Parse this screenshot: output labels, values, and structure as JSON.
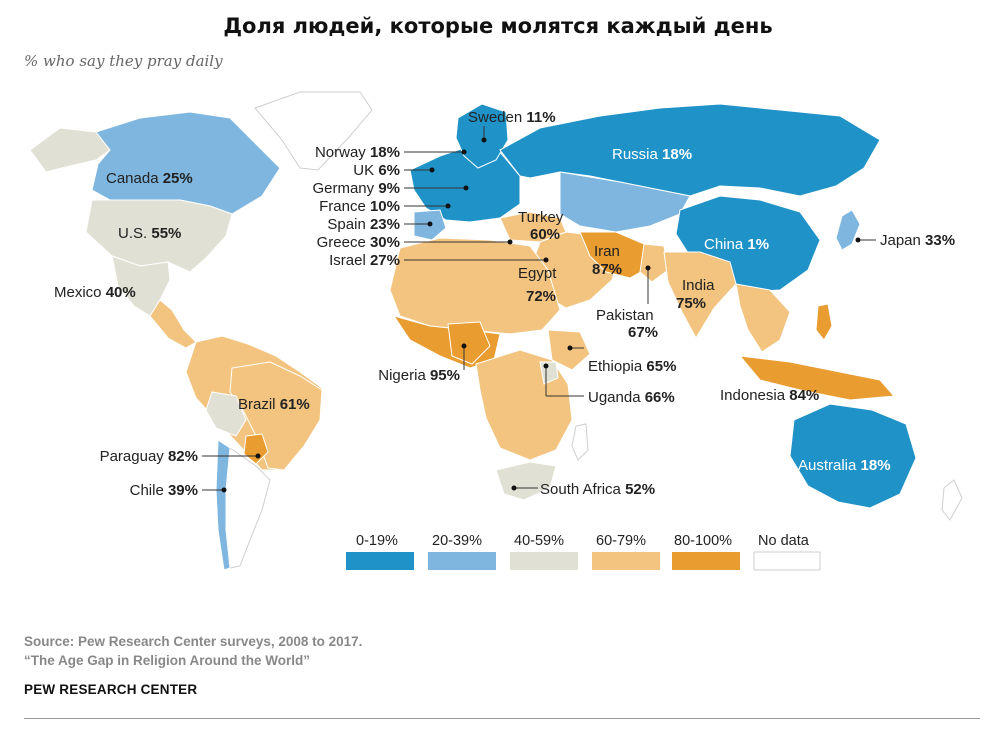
{
  "title": "Доля людей, которые молятся каждый день",
  "subtitle": "% who say they pray daily",
  "colors": {
    "c0_19": "#1f93c8",
    "c20_39": "#7fb6df",
    "c40_59": "#e1e0d4",
    "c60_79": "#f3c47f",
    "c80_100": "#e99c2f",
    "nodata": "#ffffff"
  },
  "countries": [
    {
      "name": "Sweden",
      "value": "11%",
      "band": "0-19%"
    },
    {
      "name": "Norway",
      "value": "18%",
      "band": "0-19%"
    },
    {
      "name": "UK",
      "value": "6%",
      "band": "0-19%"
    },
    {
      "name": "Germany",
      "value": "9%",
      "band": "0-19%"
    },
    {
      "name": "France",
      "value": "10%",
      "band": "0-19%"
    },
    {
      "name": "Spain",
      "value": "23%",
      "band": "20-39%"
    },
    {
      "name": "Greece",
      "value": "30%",
      "band": "20-39%"
    },
    {
      "name": "Israel",
      "value": "27%",
      "band": "20-39%"
    },
    {
      "name": "Russia",
      "value": "18%",
      "band": "0-19%"
    },
    {
      "name": "Canada",
      "value": "25%",
      "band": "20-39%"
    },
    {
      "name": "U.S.",
      "value": "55%",
      "band": "40-59%"
    },
    {
      "name": "Mexico",
      "value": "40%",
      "band": "40-59%"
    },
    {
      "name": "Turkey",
      "value": "60%",
      "band": "60-79%"
    },
    {
      "name": "Iran",
      "value": "87%",
      "band": "80-100%"
    },
    {
      "name": "Egypt",
      "value": "72%",
      "band": "60-79%"
    },
    {
      "name": "India",
      "value": "75%",
      "band": "60-79%"
    },
    {
      "name": "Pakistan",
      "value": "67%",
      "band": "60-79%"
    },
    {
      "name": "China",
      "value": "1%",
      "band": "0-19%"
    },
    {
      "name": "Japan",
      "value": "33%",
      "band": "20-39%"
    },
    {
      "name": "Nigeria",
      "value": "95%",
      "band": "80-100%"
    },
    {
      "name": "Ethiopia",
      "value": "65%",
      "band": "60-79%"
    },
    {
      "name": "Uganda",
      "value": "66%",
      "band": "60-79%"
    },
    {
      "name": "Indonesia",
      "value": "84%",
      "band": "80-100%"
    },
    {
      "name": "Brazil",
      "value": "61%",
      "band": "60-79%"
    },
    {
      "name": "Paraguay",
      "value": "82%",
      "band": "80-100%"
    },
    {
      "name": "Chile",
      "value": "39%",
      "band": "20-39%"
    },
    {
      "name": "South Africa",
      "value": "52%",
      "band": "40-59%"
    },
    {
      "name": "Australia",
      "value": "18%",
      "band": "0-19%"
    }
  ],
  "legend": [
    {
      "label": "0-19%",
      "color": "#1f93c8"
    },
    {
      "label": "20-39%",
      "color": "#7fb6df"
    },
    {
      "label": "40-59%",
      "color": "#e1e0d4"
    },
    {
      "label": "60-79%",
      "color": "#f3c47f"
    },
    {
      "label": "80-100%",
      "color": "#e99c2f"
    },
    {
      "label": "No data",
      "color": "#ffffff"
    }
  ],
  "source_line1": "Source: Pew Research Center surveys, 2008 to 2017.",
  "source_line2": "“The Age Gap in Religion Around the World”",
  "brand": "PEW RESEARCH CENTER"
}
